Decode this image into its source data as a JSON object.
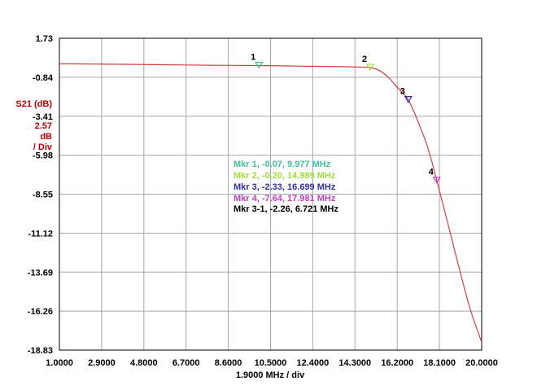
{
  "chart_data": {
    "type": "line",
    "title": "",
    "ylabel_lines": [
      "S21 (dB)",
      "2.57",
      "dB",
      "/ Div"
    ],
    "xlabel": "1.9000 MHz / div",
    "xlim": [
      1.0,
      20.0
    ],
    "ylim": [
      -18.83,
      1.73
    ],
    "x_ticks": [
      "1.0000",
      "2.9000",
      "4.8000",
      "6.7000",
      "8.6000",
      "10.5000",
      "12.4000",
      "14.3000",
      "16.2000",
      "18.1000",
      "20.0000"
    ],
    "y_ticks": [
      "1.73",
      "-0.84",
      "-3.41",
      "-5.98",
      "-8.55",
      "-11.12",
      "-13.69",
      "-16.26",
      "-18.83"
    ],
    "grid": true,
    "trace_color": "#d04040",
    "series": [
      {
        "x": [
          1.0,
          2.0,
          4.0,
          6.0,
          8.0,
          9.977,
          12.0,
          14.0,
          14.5,
          14.989,
          15.4,
          15.8,
          16.2,
          16.699,
          17.2,
          17.6,
          17.981,
          18.5,
          19.0,
          19.5,
          20.0
        ],
        "y": [
          0.05,
          0.04,
          0.01,
          -0.02,
          -0.05,
          -0.07,
          -0.11,
          -0.15,
          -0.17,
          -0.2,
          -0.4,
          -0.85,
          -1.5,
          -2.33,
          -4.0,
          -5.6,
          -7.64,
          -10.6,
          -13.5,
          -16.2,
          -18.3
        ]
      }
    ],
    "markers": [
      {
        "num": "1",
        "x": 9.977,
        "y": -0.07,
        "color": "#40c0a0",
        "label": "Mkr 1, -0.07, 9.977 MHz"
      },
      {
        "num": "2",
        "x": 14.989,
        "y": -0.2,
        "color": "#a0e040",
        "label": "Mkr 2, -0.20, 14.989 MHz"
      },
      {
        "num": "3",
        "x": 16.699,
        "y": -2.33,
        "color": "#3030a0",
        "label": "Mkr 3, -2.33, 16.699 MHz"
      },
      {
        "num": "4",
        "x": 17.981,
        "y": -7.64,
        "color": "#c040c0",
        "label": "Mkr 4, -7.64, 17.981 MHz"
      }
    ],
    "delta_marker": {
      "color": "#000000",
      "label": "Mkr 3-1, -2.26, 6.721 MHz"
    }
  }
}
